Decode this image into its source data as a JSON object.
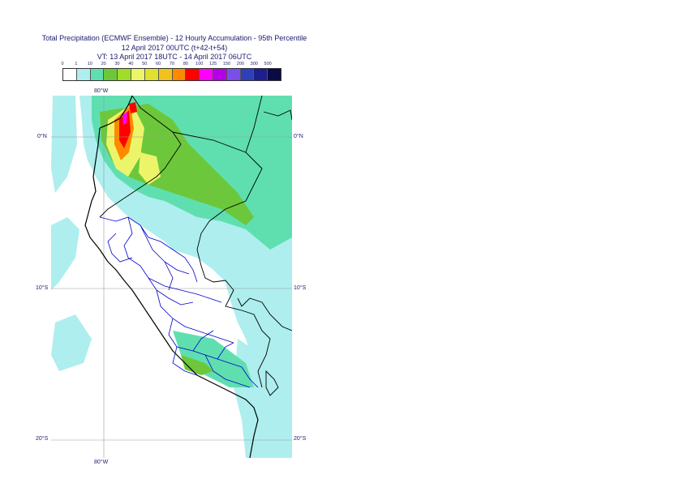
{
  "title": {
    "line1": "Total Precipitation (ECMWF Ensemble) - 12 Hourly Accumulation - 95th Percentile",
    "line2": "12 April 2017 00UTC (t+42-t+54)",
    "line3": "VT: 13 April 2017 18UTC - 14 April 2017 06UTC"
  },
  "legend": {
    "labels": [
      "0",
      "1",
      "10",
      "20",
      "30",
      "40",
      "50",
      "60",
      "70",
      "80",
      "100",
      "125",
      "150",
      "200",
      "300",
      "500"
    ],
    "colors": [
      "#ffffff",
      "#aeeeee",
      "#5fdfb0",
      "#6cc83a",
      "#a0dc28",
      "#ecf56a",
      "#e0e030",
      "#f2c21c",
      "#ff8a00",
      "#ff0000",
      "#ff00ff",
      "#b400e6",
      "#7a4ee8",
      "#2e3fb8",
      "#1e1e8c",
      "#0a0a46"
    ]
  },
  "axes": {
    "top_lon": "80°W",
    "bottom_lon": "80°W",
    "lat_labels": [
      "0°N",
      "10°S",
      "20°S"
    ]
  },
  "colors": {
    "coastline": "#000000",
    "admin_borders": "#0000cc",
    "grid": "#999999",
    "text": "#1a1a6e"
  }
}
